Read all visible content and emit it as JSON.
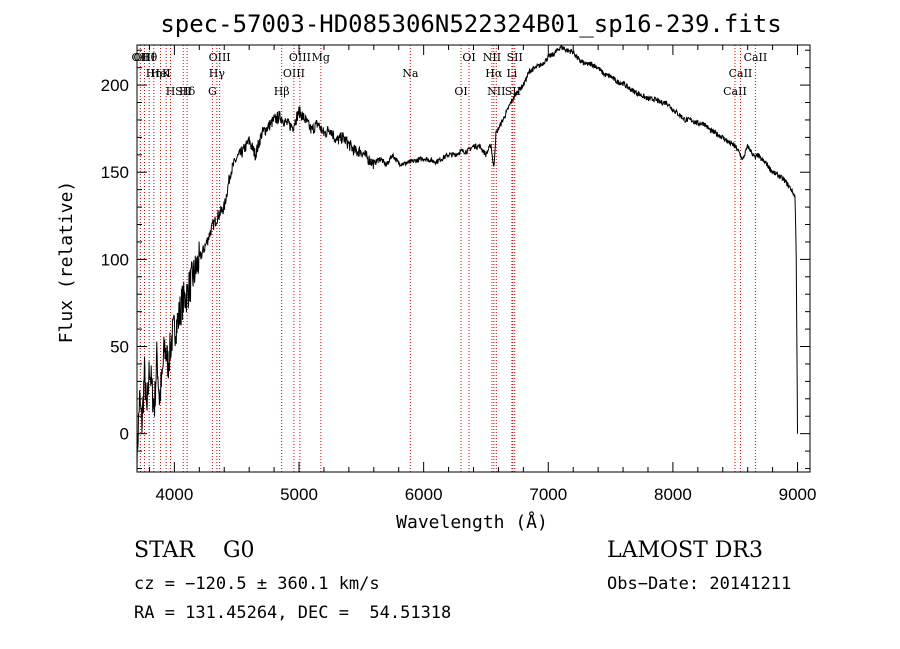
{
  "chart_data": {
    "type": "line",
    "title": "spec-57003-HD085306N522324B01_sp16-239.fits",
    "xlabel": "Wavelength (Å)",
    "ylabel": "Flux (relative)",
    "xlim": [
      3700,
      9100
    ],
    "ylim": [
      -22,
      223
    ],
    "xticks": [
      "4000",
      "5000",
      "6000",
      "7000",
      "8000",
      "9000"
    ],
    "xtick_values": [
      4000,
      5000,
      6000,
      7000,
      8000,
      9000
    ],
    "yticks": [
      "0",
      "50",
      "100",
      "150",
      "200"
    ],
    "ytick_values": [
      0,
      50,
      100,
      150,
      200
    ],
    "grid": false,
    "series": [
      {
        "x": [
          3700,
          3720,
          3740,
          3760,
          3780,
          3800,
          3820,
          3840,
          3860,
          3880,
          3900,
          3920,
          3950,
          3980,
          4000,
          4030,
          4060,
          4100,
          4150,
          4200,
          4250,
          4300,
          4350,
          4400,
          4450,
          4500,
          4550,
          4600,
          4650,
          4700,
          4750,
          4800,
          4850,
          4900,
          4950,
          5000,
          5050,
          5100,
          5150,
          5200,
          5250,
          5300,
          5350,
          5400,
          5450,
          5500,
          5550,
          5600,
          5650,
          5700,
          5750,
          5800,
          5850,
          5900,
          5950,
          6000,
          6050,
          6100,
          6150,
          6200,
          6250,
          6300,
          6350,
          6400,
          6450,
          6500,
          6540,
          6563,
          6580,
          6600,
          6650,
          6700,
          6750,
          6800,
          6850,
          6900,
          6950,
          7000,
          7050,
          7100,
          7150,
          7200,
          7250,
          7300,
          7350,
          7400,
          7450,
          7500,
          7550,
          7600,
          7650,
          7700,
          7750,
          7800,
          7850,
          7900,
          7950,
          8000,
          8050,
          8100,
          8150,
          8200,
          8250,
          8300,
          8350,
          8400,
          8450,
          8500,
          8542,
          8560,
          8600,
          8662,
          8680,
          8700,
          8750,
          8800,
          8850,
          8900,
          8950,
          8980,
          8990,
          9000
        ],
        "y": [
          -15,
          20,
          5,
          35,
          10,
          40,
          25,
          15,
          45,
          20,
          30,
          50,
          40,
          55,
          60,
          65,
          75,
          80,
          90,
          100,
          108,
          118,
          125,
          130,
          150,
          158,
          162,
          168,
          160,
          172,
          176,
          180,
          182,
          178,
          176,
          185,
          180,
          174,
          178,
          172,
          175,
          168,
          170,
          166,
          162,
          162,
          158,
          155,
          158,
          154,
          160,
          155,
          155,
          156,
          157,
          158,
          157,
          156,
          158,
          160,
          160,
          162,
          162,
          165,
          165,
          160,
          166,
          152,
          172,
          175,
          182,
          190,
          196,
          200,
          208,
          210,
          212,
          216,
          218,
          222,
          220,
          219,
          214,
          212,
          212,
          210,
          206,
          205,
          202,
          201,
          198,
          196,
          194,
          192,
          192,
          190,
          190,
          186,
          183,
          180,
          180,
          178,
          178,
          174,
          172,
          170,
          167,
          165,
          160,
          157,
          165,
          158,
          160,
          158,
          155,
          150,
          148,
          145,
          140,
          136,
          100,
          0
        ]
      }
    ],
    "annotations": [
      {
        "label": "Hθ",
        "x": 3798
      },
      {
        "label": "K",
        "x": 3934
      },
      {
        "label": "Hδ",
        "x": 4102
      },
      {
        "label": "OIII",
        "x": 4363
      },
      {
        "label": "Hγ",
        "x": 4341
      },
      {
        "label": "G",
        "x": 4305
      },
      {
        "label": "OII",
        "x": 3727
      },
      {
        "label": "HeI",
        "x": 3889
      },
      {
        "label": "SII",
        "x": 4071
      },
      {
        "label": "OIII",
        "x": 3760
      },
      {
        "label": "Hη",
        "x": 3835
      },
      {
        "label": "H",
        "x": 3969
      },
      {
        "label": "OIII",
        "x": 5007
      },
      {
        "label": "OIII",
        "x": 4959
      },
      {
        "label": "Hβ",
        "x": 4861
      },
      {
        "label": "Mg",
        "x": 5175
      },
      {
        "label": "Na",
        "x": 5893
      },
      {
        "label": "OI",
        "x": 6300
      },
      {
        "label": "OI",
        "x": 6364
      },
      {
        "label": "Hα",
        "x": 6563
      },
      {
        "label": "SII",
        "x": 6716
      },
      {
        "label": "NII",
        "x": 6548
      },
      {
        "label": "Li",
        "x": 6708
      },
      {
        "label": "NII",
        "x": 6583
      },
      {
        "label": "SII",
        "x": 6731
      },
      {
        "label": "CaII",
        "x": 8542
      },
      {
        "label": "CaII",
        "x": 8498
      },
      {
        "label": "CaII",
        "x": 8662
      }
    ]
  },
  "info": {
    "class": "STAR    G0",
    "survey": "LAMOST DR3",
    "cz": "cz = −120.5 ± 360.1 km/s",
    "obs_date": "Obs−Date: 20141211",
    "radec": "RA = 131.45264, DEC =  54.51318"
  },
  "colors": {
    "spectrum": "#000000",
    "lines": "#cc0000",
    "axis": "#000000"
  }
}
